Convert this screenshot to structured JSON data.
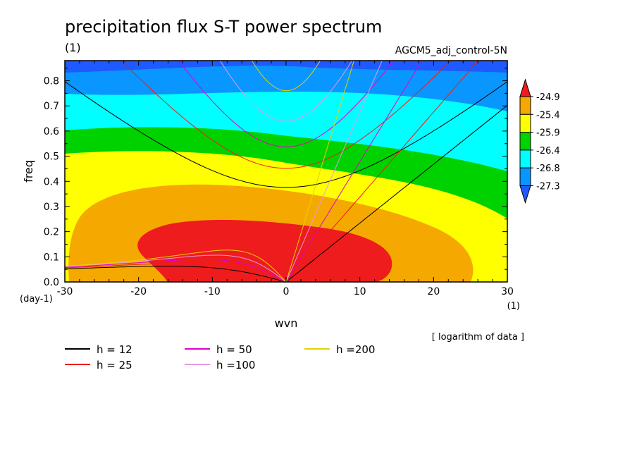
{
  "chart_data": {
    "type": "contour",
    "title": "precipitation flux S-T power spectrum",
    "units_label": "(1)",
    "experiment": "AGCM5_adj_control-5N",
    "xlabel": "wvn",
    "ylabel": "freq",
    "x_units": "(1)",
    "y_units": "(day-1)",
    "xlim": [
      -30,
      30
    ],
    "ylim": [
      0,
      0.88
    ],
    "x_ticks": [
      -30,
      -20,
      -10,
      0,
      10,
      20,
      30
    ],
    "y_ticks": [
      0.0,
      0.1,
      0.2,
      0.3,
      0.4,
      0.5,
      0.6,
      0.7,
      0.8
    ],
    "colorbar": {
      "levels": [
        "-24.9",
        "-25.4",
        "-25.9",
        "-26.4",
        "-26.8",
        "-27.3"
      ],
      "colors": [
        "#ee1c1c",
        "#f5a800",
        "#ffff00",
        "#00d200",
        "#00ffff",
        "#0a96ff",
        "#1e5aff"
      ]
    },
    "contour_bands": [
      {
        "color": "#1e5aff",
        "boundary_freq": [
          0.88,
          0.88,
          0.88,
          0.88,
          0.88,
          0.88,
          0.88
        ]
      },
      {
        "color": "#0a96ff",
        "boundary_freq": [
          0.84,
          0.83,
          0.86,
          0.87,
          0.86,
          0.85,
          0.83
        ]
      },
      {
        "color": "#00ffff",
        "boundary_freq": [
          0.77,
          0.76,
          0.76,
          0.75,
          0.74,
          0.71,
          0.67
        ]
      },
      {
        "color": "#00d200",
        "boundary_freq": [
          0.61,
          0.63,
          0.62,
          0.58,
          0.56,
          0.52,
          0.46
        ]
      },
      {
        "color": "#ffff00",
        "boundary_freq": [
          0.52,
          0.53,
          0.52,
          0.48,
          0.44,
          0.37,
          0.26
        ]
      },
      {
        "color": "#f5a800",
        "boundary_freq": [
          0.0,
          0.03,
          0.38,
          0.34,
          0.28,
          0.15,
          0.0
        ]
      }
    ],
    "note": "[ logarithm of data ]",
    "series": [
      {
        "name": "h = 12",
        "color": "#000000"
      },
      {
        "name": "h = 25",
        "color": "#ee1c1c"
      },
      {
        "name": "h = 50",
        "color": "#e000c8"
      },
      {
        "name": "h =100",
        "color": "#e699e6"
      },
      {
        "name": "h =200",
        "color": "#e6d200"
      }
    ]
  }
}
